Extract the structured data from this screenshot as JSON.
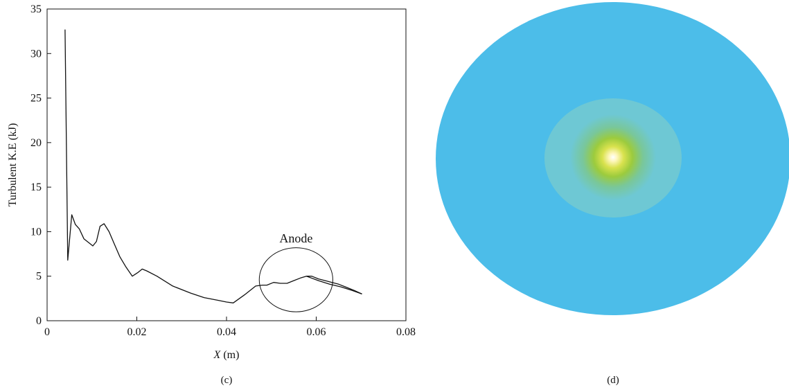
{
  "chart_data": [
    {
      "type": "line",
      "panel_label": "(c)",
      "xlabel_var": "X",
      "xlabel_unit": " (m)",
      "ylabel": "Turbulent K.E (kJ)",
      "xlim": [
        0,
        0.08
      ],
      "ylim": [
        0,
        35
      ],
      "xticks": [
        0,
        0.02,
        0.04,
        0.06,
        0.08
      ],
      "xtick_labels": [
        "0",
        "0.02",
        "0.04",
        "0.06",
        "0.08"
      ],
      "yticks": [
        0,
        5,
        10,
        15,
        20,
        25,
        30,
        35
      ],
      "ytick_labels": [
        "0",
        "5",
        "10",
        "15",
        "20",
        "25",
        "30",
        "35"
      ],
      "grid": false,
      "series": [
        {
          "x": [
            0.004,
            0.0046,
            0.0055,
            0.0063,
            0.0072,
            0.0082,
            0.0092,
            0.0102,
            0.011,
            0.0118,
            0.0127,
            0.0138,
            0.015,
            0.0162,
            0.0175,
            0.019,
            0.0202,
            0.0212,
            0.0222,
            0.0245,
            0.028,
            0.032,
            0.035,
            0.038,
            0.04,
            0.0415,
            0.044,
            0.0465,
            0.048,
            0.049,
            0.0505,
            0.052,
            0.0535,
            0.055,
            0.0565,
            0.0578,
            0.059,
            0.0605,
            0.062,
            0.0635,
            0.065,
            0.0665,
            0.0685,
            0.0702
          ],
          "y": [
            32.7,
            6.8,
            11.9,
            10.8,
            10.3,
            9.2,
            8.8,
            8.4,
            8.9,
            10.6,
            10.9,
            10.0,
            8.6,
            7.2,
            6.1,
            5.0,
            5.4,
            5.8,
            5.6,
            5.0,
            3.9,
            3.1,
            2.6,
            2.3,
            2.1,
            2.0,
            2.9,
            3.9,
            4.0,
            4.0,
            4.3,
            4.2,
            4.2,
            4.5,
            4.8,
            5.0,
            5.0,
            4.7,
            4.5,
            4.3,
            4.1,
            3.8,
            3.4,
            3.0
          ]
        },
        {
          "x": [
            0.0578,
            0.0605,
            0.063,
            0.0655,
            0.068,
            0.0702
          ],
          "y": [
            5.0,
            4.5,
            4.1,
            3.8,
            3.4,
            3.0
          ]
        }
      ],
      "annotations": [
        {
          "text": "Anode",
          "x": 0.0555,
          "y": 8.8
        }
      ],
      "annotation_circle": {
        "cx": 0.0555,
        "cy": 4.6,
        "rx": 0.0082,
        "ry": 3.6
      }
    },
    {
      "type": "heatmap",
      "panel_label": "(d)",
      "description_colors": [
        "#4cbde9",
        "#6ec8d4",
        "#5cc6c4",
        "#79c79a",
        "#9ccb3d",
        "#d9e24e",
        "#fdf6b8",
        "#ffffff"
      ]
    }
  ]
}
